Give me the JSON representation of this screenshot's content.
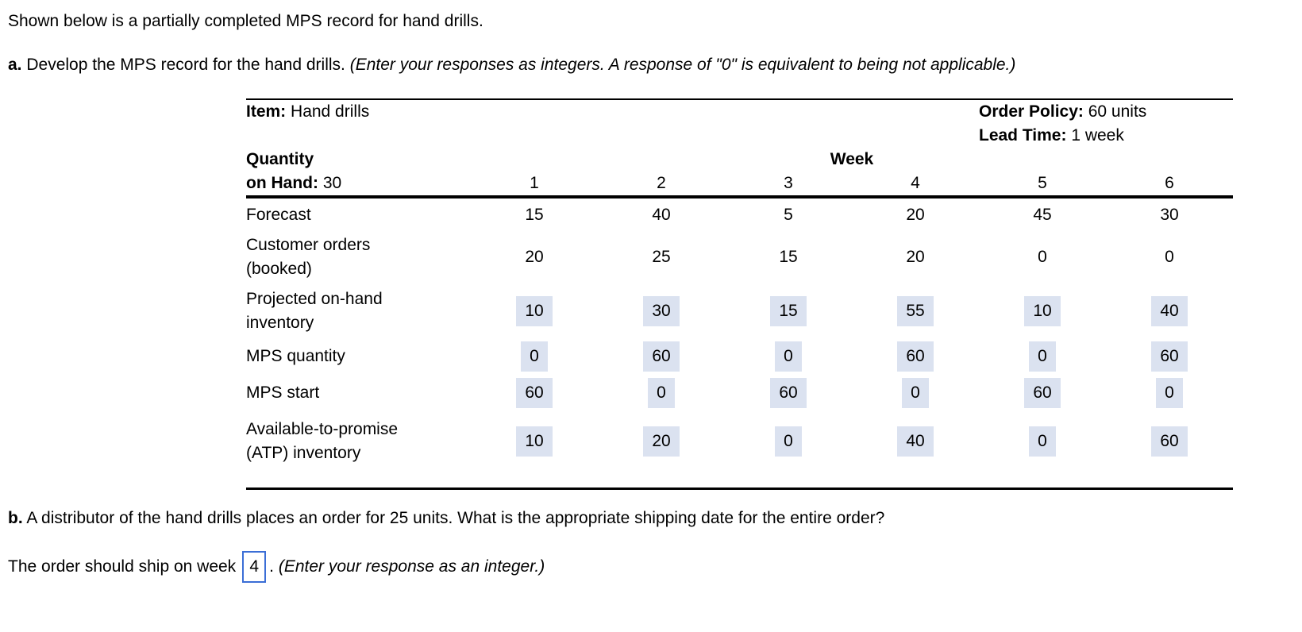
{
  "intro": "Shown below is a partially completed MPS record for hand drills.",
  "part_a": {
    "label": "a.",
    "text": " Develop the MPS record for the hand drills. ",
    "note": "(Enter your responses as integers. A response of \"0\" is equivalent to being not applicable.)"
  },
  "table": {
    "item_label": "Item:",
    "item_value": " Hand drills",
    "order_policy_label": "Order Policy:",
    "order_policy_value": " 60 units",
    "lead_time_label": "Lead Time:",
    "lead_time_value": " 1 week",
    "qoh_label_line1": "Quantity",
    "qoh_label_line2": "on Hand:",
    "qoh_value": " 30",
    "week_header": "Week",
    "weeks": [
      "1",
      "2",
      "3",
      "4",
      "5",
      "6"
    ],
    "rows": [
      {
        "label": "Forecast",
        "highlighted": false,
        "values": [
          "15",
          "40",
          "5",
          "20",
          "45",
          "30"
        ]
      },
      {
        "label": "Customer orders (booked)",
        "highlighted": false,
        "values": [
          "20",
          "25",
          "15",
          "20",
          "0",
          "0"
        ]
      },
      {
        "label": "Projected on-hand inventory",
        "highlighted": true,
        "values": [
          "10",
          "30",
          "15",
          "55",
          "10",
          "40"
        ]
      },
      {
        "label": "MPS quantity",
        "highlighted": true,
        "values": [
          "0",
          "60",
          "0",
          "60",
          "0",
          "60"
        ]
      },
      {
        "label": "MPS start",
        "highlighted": true,
        "values": [
          "60",
          "0",
          "60",
          "0",
          "60",
          "0"
        ]
      },
      {
        "label": "Available-to-promise (ATP) inventory",
        "highlighted": true,
        "values": [
          "10",
          "20",
          "0",
          "40",
          "0",
          "60"
        ]
      }
    ]
  },
  "part_b": {
    "label": "b.",
    "text": " A distributor of the hand drills places an order for 25 units. What is the appropriate shipping date for the entire order?"
  },
  "answer_line": {
    "prefix": "The order should ship on week",
    "input_value": "4",
    "suffix": ". ",
    "note": "(Enter your response as an integer.)"
  },
  "colors": {
    "highlight_bg": "#dbe2f0",
    "input_border": "#3b6ed6"
  }
}
